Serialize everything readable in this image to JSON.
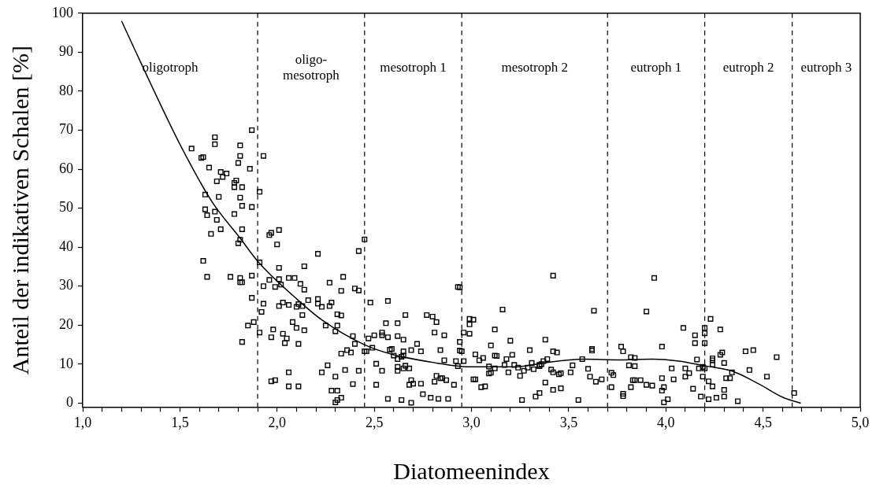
{
  "chart_data": {
    "type": "scatter",
    "xlabel": "Diatomeenindex",
    "ylabel": "Anteil der indikativen Schalen [%]",
    "xlim": [
      1.0,
      5.0
    ],
    "xticks": [
      {
        "value": 1.0,
        "label": "1,0"
      },
      {
        "value": 1.1,
        "label": null
      },
      {
        "value": 1.2,
        "label": null
      },
      {
        "value": 1.3,
        "label": null
      },
      {
        "value": 1.4,
        "label": null
      },
      {
        "value": 1.5,
        "label": "1,5"
      },
      {
        "value": 1.6,
        "label": null
      },
      {
        "value": 1.7,
        "label": null
      },
      {
        "value": 1.8,
        "label": null
      },
      {
        "value": 1.9,
        "label": null
      },
      {
        "value": 2.0,
        "label": "2,0"
      },
      {
        "value": 2.1,
        "label": null
      },
      {
        "value": 2.2,
        "label": null
      },
      {
        "value": 2.3,
        "label": null
      },
      {
        "value": 2.4,
        "label": null
      },
      {
        "value": 2.5,
        "label": "2,5"
      },
      {
        "value": 2.6,
        "label": null
      },
      {
        "value": 2.7,
        "label": null
      },
      {
        "value": 2.8,
        "label": null
      },
      {
        "value": 2.9,
        "label": null
      },
      {
        "value": 3.0,
        "label": "3,0"
      },
      {
        "value": 3.1,
        "label": null
      },
      {
        "value": 3.2,
        "label": null
      },
      {
        "value": 3.3,
        "label": null
      },
      {
        "value": 3.4,
        "label": null
      },
      {
        "value": 3.5,
        "label": "3,5"
      },
      {
        "value": 3.6,
        "label": null
      },
      {
        "value": 3.7,
        "label": null
      },
      {
        "value": 3.8,
        "label": null
      },
      {
        "value": 3.9,
        "label": null
      },
      {
        "value": 4.0,
        "label": "4,0"
      },
      {
        "value": 4.1,
        "label": null
      },
      {
        "value": 4.2,
        "label": null
      },
      {
        "value": 4.3,
        "label": null
      },
      {
        "value": 4.4,
        "label": null
      },
      {
        "value": 4.5,
        "label": "4,5"
      },
      {
        "value": 4.6,
        "label": null
      },
      {
        "value": 4.7,
        "label": null
      },
      {
        "value": 4.8,
        "label": null
      },
      {
        "value": 4.9,
        "label": null
      },
      {
        "value": 5.0,
        "label": "5,0"
      }
    ],
    "ylim": [
      -1,
      100
    ],
    "yticks": [
      0,
      10,
      20,
      30,
      40,
      50,
      60,
      70,
      80,
      90,
      100
    ],
    "series": [
      {
        "type": "scatter",
        "color": "#000000",
        "marker": "square",
        "x": [
          1.87,
          1.68,
          1.68,
          1.81,
          1.56,
          1.61,
          1.62,
          1.81,
          1.93,
          1.8,
          1.65,
          1.86,
          1.71,
          1.74,
          1.72,
          1.69,
          1.79,
          1.78,
          1.78,
          1.82,
          1.91,
          1.63,
          1.7,
          1.81,
          1.82,
          1.87,
          1.63,
          1.64,
          1.68,
          1.69,
          1.78,
          1.71,
          1.82,
          1.66,
          1.81,
          1.8,
          1.96,
          1.97,
          2.01,
          2.0,
          2.21,
          2.42,
          2.45,
          1.62,
          1.91,
          2.01,
          2.14,
          1.64,
          1.76,
          1.81,
          1.81,
          1.82,
          1.87,
          1.96,
          2.01,
          2.06,
          2.09,
          1.93,
          1.99,
          2.02,
          2.12,
          2.14,
          2.27,
          2.34,
          2.33,
          2.4,
          2.42,
          1.87,
          1.93,
          2.03,
          2.01,
          2.06,
          2.1,
          2.11,
          2.13,
          2.16,
          2.21,
          2.21,
          2.23,
          2.27,
          2.28,
          1.92,
          2.13,
          2.31,
          2.33,
          1.88,
          1.85,
          2.08,
          2.1,
          2.14,
          1.98,
          2.25,
          2.31,
          2.3,
          1.91,
          2.03,
          2.05,
          1.97,
          2.04,
          2.11,
          1.82,
          2.39,
          2.4,
          2.33,
          2.36,
          2.38,
          2.45,
          2.26,
          2.23,
          2.06,
          2.3,
          2.35,
          2.42,
          1.97,
          1.99,
          2.06,
          2.11,
          2.39,
          2.28,
          2.31,
          2.33,
          2.31,
          2.3,
          2.93,
          2.94,
          3.42,
          2.48,
          2.57,
          3.16,
          3.63,
          2.66,
          2.77,
          2.8,
          2.82,
          2.56,
          2.62,
          2.99,
          2.99,
          3.01,
          3.12,
          2.47,
          2.5,
          2.54,
          2.54,
          2.57,
          2.62,
          2.65,
          2.81,
          2.86,
          2.96,
          2.99,
          3.2,
          3.38,
          3.62,
          3.62,
          2.94,
          2.94,
          2.95,
          3.1,
          2.46,
          2.49,
          2.58,
          2.59,
          2.65,
          2.69,
          2.72,
          2.74,
          2.84,
          3.3,
          3.42,
          3.44,
          2.6,
          2.64,
          2.65,
          2.62,
          3.02,
          3.12,
          3.13,
          3.21,
          3.18,
          3.04,
          3.06,
          3.39,
          3.37,
          3.36,
          3.57,
          2.86,
          2.92,
          2.96,
          2.93,
          2.51,
          2.54,
          2.62,
          2.62,
          2.65,
          2.66,
          2.68,
          3.17,
          3.22,
          3.24,
          3.25,
          3.27,
          3.29,
          3.31,
          3.32,
          3.35,
          3.35,
          3.09,
          3.12,
          3.09,
          3.1,
          3.19,
          3.41,
          3.42,
          3.45,
          3.46,
          3.51,
          3.52,
          3.6,
          3.61,
          3.64,
          3.67,
          3.72,
          3.73,
          3.72,
          2.82,
          2.84,
          2.85,
          2.81,
          2.87,
          2.69,
          2.7,
          2.68,
          2.74,
          2.51,
          2.91,
          3.01,
          3.02,
          3.05,
          3.07,
          3.38,
          3.42,
          3.46,
          2.75,
          2.79,
          2.83,
          2.88,
          2.57,
          2.64,
          2.69,
          3.26,
          3.33,
          3.35,
          3.55,
          3.94,
          3.9,
          4.23,
          4.09,
          4.2,
          4.2,
          4.28,
          4.15,
          4.15,
          4.2,
          3.77,
          3.78,
          3.98,
          4.41,
          4.45,
          4.29,
          4.28,
          4.57,
          3.82,
          3.84,
          4.16,
          4.24,
          4.24,
          4.24,
          3.81,
          3.84,
          4.3,
          4.03,
          4.1,
          4.12,
          4.1,
          4.17,
          4.19,
          4.2,
          4.34,
          4.31,
          4.33,
          4.43,
          4.52,
          4.19,
          4.22,
          4.24,
          3.98,
          4.04,
          3.83,
          3.84,
          3.87,
          3.9,
          3.93,
          3.82,
          3.99,
          3.98,
          4.14,
          4.3,
          4.3,
          3.78,
          3.78,
          4.01,
          3.99,
          4.18,
          4.22,
          4.26,
          4.37,
          4.66
        ],
        "values": [
          70.0,
          68.2,
          66.4,
          66.1,
          65.3,
          62.9,
          63.1,
          63.4,
          63.4,
          61.6,
          60.4,
          60.1,
          59.3,
          58.9,
          58.0,
          56.9,
          57.1,
          56.5,
          55.4,
          55.4,
          54.2,
          53.5,
          52.9,
          52.7,
          50.6,
          50.3,
          49.7,
          48.2,
          49.1,
          47.0,
          48.5,
          44.6,
          44.6,
          43.4,
          41.9,
          41.0,
          43.1,
          43.7,
          44.4,
          40.7,
          38.3,
          39.0,
          42.0,
          36.5,
          36.1,
          34.7,
          35.1,
          32.4,
          32.4,
          32.1,
          31.0,
          31.0,
          32.7,
          31.6,
          31.8,
          32.1,
          32.1,
          30.0,
          29.8,
          30.4,
          30.6,
          29.1,
          30.9,
          32.4,
          28.8,
          29.4,
          28.9,
          27.0,
          25.5,
          25.8,
          24.9,
          25.2,
          24.7,
          25.4,
          24.9,
          26.4,
          26.7,
          25.5,
          24.7,
          24.9,
          25.8,
          23.4,
          22.6,
          22.8,
          22.5,
          20.8,
          19.9,
          20.8,
          19.3,
          18.7,
          18.9,
          19.9,
          19.9,
          18.4,
          18.1,
          17.8,
          16.6,
          16.9,
          15.4,
          15.2,
          15.7,
          17.2,
          15.2,
          12.7,
          13.6,
          13.0,
          13.3,
          9.7,
          7.9,
          7.9,
          6.8,
          8.5,
          8.3,
          5.6,
          5.9,
          4.3,
          4.3,
          4.9,
          3.2,
          3.2,
          1.4,
          0.8,
          0.2,
          29.8,
          29.7,
          32.7,
          25.8,
          26.2,
          24.0,
          23.7,
          22.6,
          22.6,
          22.2,
          20.8,
          20.5,
          20.5,
          21.6,
          20.2,
          21.4,
          18.9,
          16.6,
          17.4,
          18.1,
          17.4,
          16.9,
          17.2,
          16.3,
          18.1,
          17.4,
          18.1,
          17.8,
          16.0,
          16.3,
          13.9,
          13.5,
          15.7,
          13.5,
          13.3,
          14.8,
          13.3,
          14.2,
          13.7,
          13.9,
          13.3,
          13.6,
          15.2,
          13.3,
          13.6,
          13.6,
          13.3,
          13.0,
          12.2,
          11.9,
          12.2,
          11.3,
          12.5,
          12.2,
          12.1,
          12.4,
          11.3,
          11.0,
          11.6,
          11.3,
          10.8,
          10.0,
          11.3,
          11.0,
          10.8,
          10.8,
          9.5,
          10.1,
          8.3,
          9.3,
          8.3,
          8.9,
          9.6,
          8.9,
          9.8,
          9.8,
          9.1,
          7.0,
          8.3,
          9.1,
          10.3,
          8.7,
          9.5,
          9.8,
          9.4,
          8.9,
          7.6,
          7.8,
          7.9,
          8.6,
          7.9,
          7.4,
          7.7,
          7.9,
          9.7,
          8.8,
          6.8,
          5.5,
          6.1,
          7.8,
          7.2,
          4.1,
          7.0,
          6.4,
          6.4,
          5.5,
          5.9,
          5.9,
          5.0,
          4.7,
          5.0,
          4.7,
          4.7,
          6.1,
          6.1,
          4.1,
          4.3,
          5.3,
          3.4,
          3.8,
          2.3,
          1.4,
          1.1,
          1.1,
          1.1,
          0.8,
          0.1,
          0.8,
          1.7,
          2.6,
          0.8,
          32.1,
          23.5,
          21.6,
          19.3,
          19.3,
          17.9,
          18.9,
          17.4,
          15.4,
          15.4,
          14.5,
          13.3,
          14.5,
          13.3,
          13.6,
          13.0,
          12.4,
          11.8,
          11.8,
          11.6,
          11.2,
          11.5,
          11.0,
          9.9,
          9.7,
          9.5,
          10.3,
          8.9,
          8.9,
          7.7,
          6.8,
          8.9,
          9.3,
          8.9,
          7.9,
          6.4,
          6.4,
          8.5,
          6.8,
          6.8,
          5.6,
          4.3,
          6.4,
          6.1,
          5.9,
          5.9,
          5.9,
          4.7,
          4.5,
          4.1,
          4.1,
          3.2,
          3.7,
          3.4,
          1.7,
          2.4,
          1.8,
          1.0,
          0.2,
          1.7,
          1.0,
          1.4,
          0.5,
          2.6
        ]
      },
      {
        "type": "line",
        "color": "#000000",
        "line_style": "solid",
        "marker": "none",
        "x": [
          1.2,
          1.33,
          1.5,
          1.667,
          1.804,
          1.907,
          2.106,
          2.229,
          2.449,
          2.586,
          2.819,
          2.984,
          3.231,
          3.367,
          3.573,
          3.765,
          3.93,
          4.067,
          4.198,
          4.342,
          4.479,
          4.602,
          4.694
        ],
        "values": [
          98,
          84,
          66.4,
          51.5,
          42.7,
          36,
          26.5,
          21.4,
          15,
          12.6,
          10.3,
          9.3,
          9.3,
          10.3,
          11.3,
          11.1,
          11.3,
          10.8,
          9.6,
          8.2,
          4.9,
          1.5,
          0
        ]
      }
    ],
    "ref_lines": [
      {
        "axis": "x",
        "value": 1.9,
        "label": null,
        "color": "#000000",
        "line_style": "dashed"
      },
      {
        "axis": "x",
        "value": 2.45,
        "label": null,
        "color": "#000000",
        "line_style": "dashed"
      },
      {
        "axis": "x",
        "value": 2.95,
        "label": null,
        "color": "#000000",
        "line_style": "dashed"
      },
      {
        "axis": "x",
        "value": 3.7,
        "label": null,
        "color": "#000000",
        "line_style": "dashed"
      },
      {
        "axis": "x",
        "value": 4.2,
        "label": null,
        "color": "#000000",
        "line_style": "dashed"
      },
      {
        "axis": "x",
        "value": 4.65,
        "label": null,
        "color": "#000000",
        "line_style": "dashed"
      }
    ],
    "annotations": [
      "oligotroph",
      "oligo-\nmesotroph",
      "mesotroph 1",
      "mesotroph 2",
      "eutroph 1",
      "eutroph 2",
      "eutroph 3"
    ]
  }
}
